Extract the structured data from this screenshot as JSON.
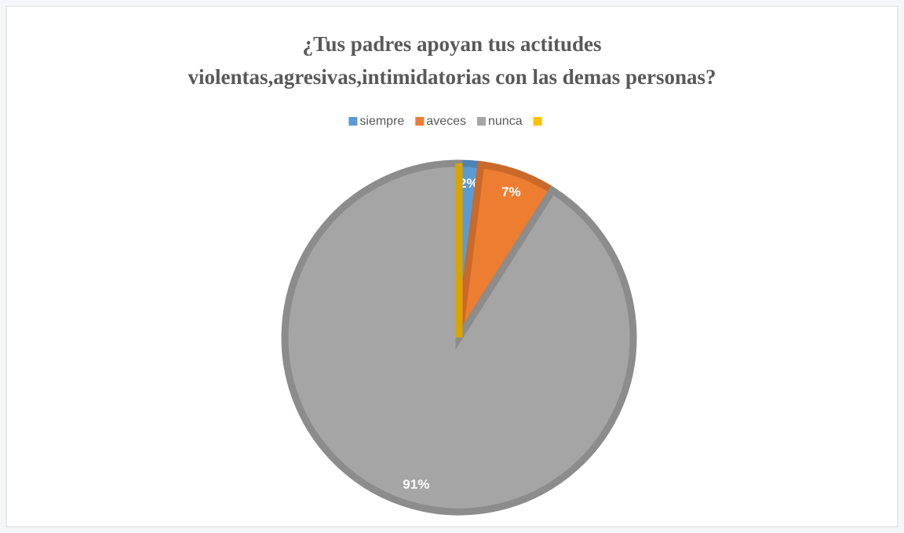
{
  "chart_data": {
    "type": "pie",
    "title": [
      "¿Tus padres apoyan tus actitudes",
      "violentas,agresivas,intimidatorias con las demas personas?"
    ],
    "categories": [
      "siempre",
      "aveces",
      "nunca",
      null
    ],
    "values": [
      2,
      7,
      91,
      0
    ],
    "value_labels": [
      "2%",
      "7%",
      "91%",
      null
    ],
    "colors": [
      "#5b9bd5",
      "#ed7d31",
      "#a5a5a5",
      "#ffc000"
    ],
    "legend": "top"
  }
}
